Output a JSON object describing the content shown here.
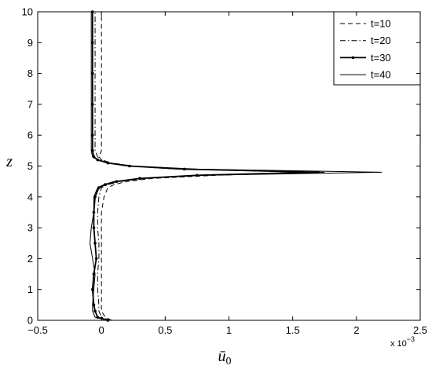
{
  "chart_data": {
    "type": "line",
    "orientation": "vertical-profile",
    "xlabel": "ū",
    "xlabel_sub": "0",
    "ylabel": "z",
    "x_multiplier": "x 10",
    "x_multiplier_exp": "−3",
    "xlim": [
      -0.5,
      2.5
    ],
    "xticks": [
      {
        "value": -0.5,
        "label": "−0.5"
      },
      0,
      0.5,
      1,
      1.5,
      2,
      2.5
    ],
    "ylim": [
      0,
      10
    ],
    "yticks": [
      0,
      1,
      2,
      3,
      4,
      5,
      6,
      7,
      8,
      9,
      10
    ],
    "legend": "top-right",
    "z": [
      0,
      0.1,
      0.3,
      0.5,
      1,
      1.5,
      2,
      2.5,
      3,
      3.5,
      4,
      4.3,
      4.4,
      4.5,
      4.6,
      4.7,
      4.8,
      4.9,
      5.0,
      5.1,
      5.2,
      5.3,
      5.5,
      6,
      7,
      8,
      9,
      10
    ],
    "series": [
      {
        "name": "t=10",
        "color": "#000000",
        "style": "dashed",
        "values": [
          0.08,
          0.03,
          0.0,
          0.0,
          0.0,
          0.0,
          0.0,
          0.0,
          0.0,
          0.0,
          0.02,
          0.05,
          0.1,
          0.2,
          0.4,
          0.9,
          1.6,
          0.6,
          0.2,
          0.06,
          0.0,
          -0.02,
          0.0,
          0.0,
          0.0,
          0.0,
          0.0,
          0.0
        ]
      },
      {
        "name": "t=20",
        "color": "#000000",
        "style": "dashdot",
        "values": [
          0.07,
          0.0,
          -0.02,
          -0.02,
          -0.03,
          -0.03,
          -0.02,
          -0.02,
          -0.03,
          -0.03,
          -0.02,
          0.0,
          0.05,
          0.15,
          0.35,
          0.8,
          1.75,
          0.7,
          0.25,
          0.08,
          0.0,
          -0.03,
          -0.05,
          -0.05,
          -0.05,
          -0.05,
          -0.05,
          -0.05
        ]
      },
      {
        "name": "t=30",
        "color": "#000000",
        "style": "dots",
        "values": [
          0.05,
          -0.03,
          -0.05,
          -0.06,
          -0.07,
          -0.06,
          -0.04,
          -0.05,
          -0.06,
          -0.06,
          -0.05,
          -0.02,
          0.03,
          0.12,
          0.3,
          0.75,
          1.7,
          0.65,
          0.22,
          0.05,
          -0.03,
          -0.06,
          -0.07,
          -0.07,
          -0.07,
          -0.07,
          -0.07,
          -0.07
        ]
      },
      {
        "name": "t=40",
        "color": "#000000",
        "style": "solid",
        "values": [
          0.05,
          -0.05,
          -0.07,
          -0.07,
          -0.06,
          -0.05,
          -0.07,
          -0.09,
          -0.08,
          -0.06,
          -0.06,
          -0.03,
          0.02,
          0.1,
          0.3,
          0.8,
          2.2,
          0.75,
          0.25,
          0.06,
          -0.03,
          -0.07,
          -0.08,
          -0.08,
          -0.08,
          -0.08,
          -0.08,
          -0.08
        ]
      }
    ]
  }
}
